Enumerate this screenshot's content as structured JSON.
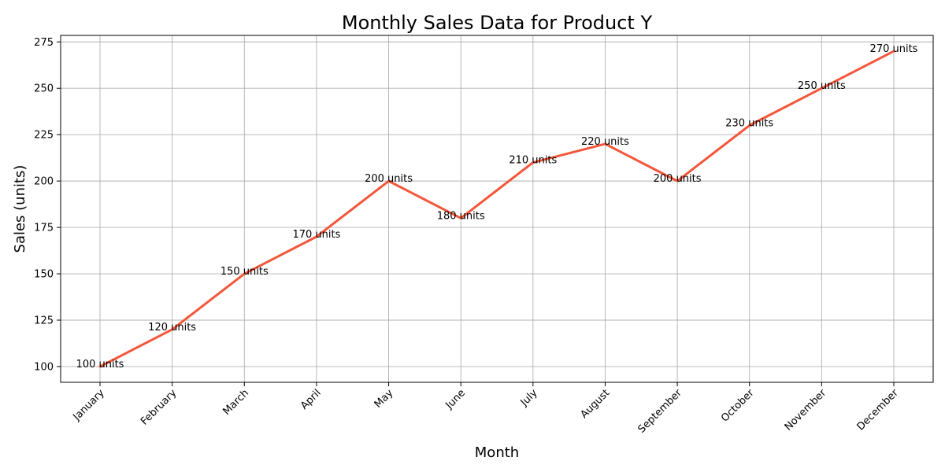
{
  "chart_data": {
    "type": "line",
    "title": "Monthly Sales Data for Product Y",
    "xlabel": "Month",
    "ylabel": "Sales (units)",
    "categories": [
      "January",
      "February",
      "March",
      "April",
      "May",
      "June",
      "July",
      "August",
      "September",
      "October",
      "November",
      "December"
    ],
    "series": [
      {
        "values": [
          100,
          120,
          150,
          170,
          200,
          180,
          210,
          220,
          200,
          230,
          250,
          270
        ],
        "color": "#f4563a"
      }
    ],
    "data_labels": [
      "100 units",
      "120 units",
      "150 units",
      "170 units",
      "200 units",
      "180 units",
      "210 units",
      "220 units",
      "200 units",
      "230 units",
      "250 units",
      "270 units"
    ],
    "ylim": [
      91.5,
      278.5
    ],
    "yticks": [
      100,
      125,
      150,
      175,
      200,
      225,
      250,
      275
    ],
    "grid": true,
    "x_tick_rotation": 45
  }
}
